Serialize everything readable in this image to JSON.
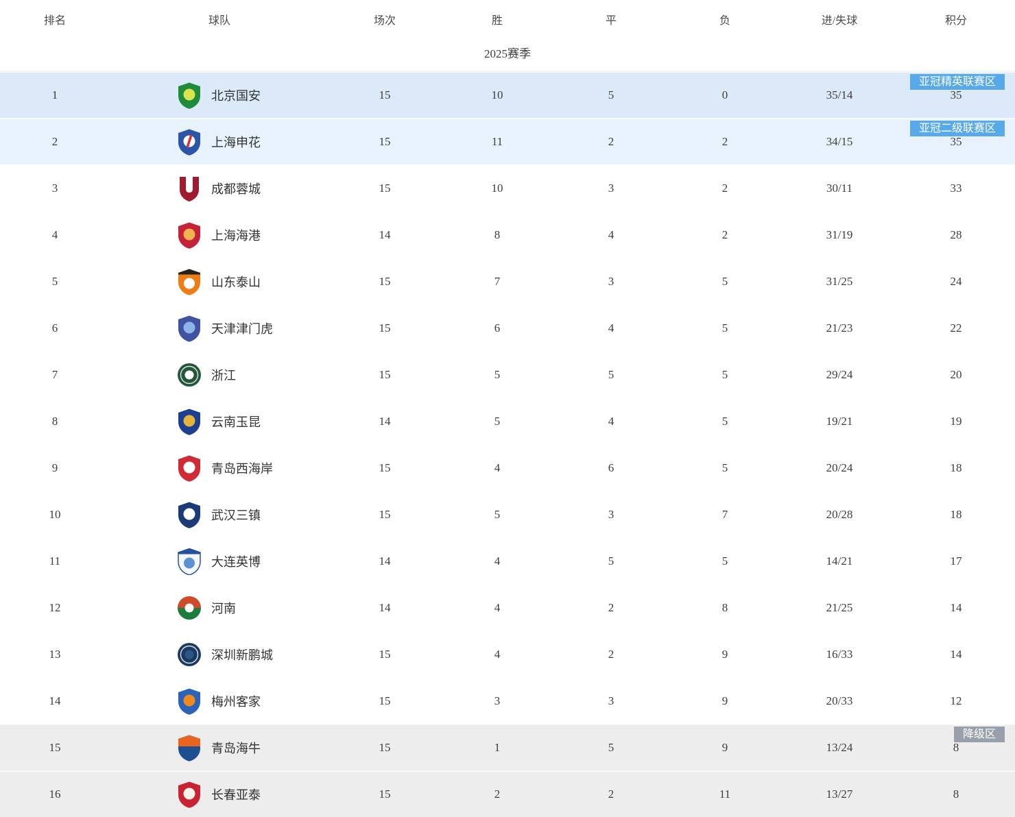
{
  "table": {
    "season_label": "2025赛季",
    "columns": [
      "排名",
      "球队",
      "场次",
      "胜",
      "平",
      "负",
      "进/失球",
      "积分"
    ],
    "zone_colors": {
      "afc_elite_row": "#dbe9f8",
      "afc_two_row": "#e8f2fc",
      "relegation_row": "#ededed"
    },
    "badge_colors": {
      "blue": "#58a9e9",
      "gray": "#9aa0ab"
    },
    "rows": [
      {
        "rank": "1",
        "team": "北京国安",
        "matches": "15",
        "wins": "10",
        "draws": "5",
        "losses": "0",
        "goals": "35/14",
        "points": "35",
        "zone": "afc-elite",
        "badge": {
          "label": "亚冠精英联赛区",
          "color": "blue"
        },
        "logo": {
          "icon": "team-crest-beijing-guoan",
          "style": "shield",
          "c1": "#1f8c3c",
          "c2": "#d9e54e"
        }
      },
      {
        "rank": "2",
        "team": "上海申花",
        "matches": "15",
        "wins": "11",
        "draws": "2",
        "losses": "2",
        "goals": "34/15",
        "points": "35",
        "zone": "afc-two",
        "badge": {
          "label": "亚冠二级联赛区",
          "color": "blue"
        },
        "logo": {
          "icon": "team-crest-shanghai-shenhua",
          "style": "shield",
          "c1": "#2a55a8",
          "c2": "#ffffff",
          "stripe": "#d03445"
        }
      },
      {
        "rank": "3",
        "team": "成都蓉城",
        "matches": "15",
        "wins": "10",
        "draws": "3",
        "losses": "2",
        "goals": "30/11",
        "points": "33",
        "zone": "none",
        "logo": {
          "icon": "team-crest-chengdu-rongcheng",
          "style": "u-shield",
          "c1": "#9e1c2e"
        }
      },
      {
        "rank": "4",
        "team": "上海海港",
        "matches": "14",
        "wins": "8",
        "draws": "4",
        "losses": "2",
        "goals": "31/19",
        "points": "28",
        "zone": "none",
        "logo": {
          "icon": "team-crest-shanghai-port",
          "style": "shield",
          "c1": "#c52237",
          "c2": "#f2b24f"
        }
      },
      {
        "rank": "5",
        "team": "山东泰山",
        "matches": "15",
        "wins": "7",
        "draws": "3",
        "losses": "5",
        "goals": "31/25",
        "points": "24",
        "zone": "none",
        "logo": {
          "icon": "team-crest-shandong-taishan",
          "style": "shield-band",
          "c1": "#ef7d17",
          "band": "#26221f",
          "c2": "#ffffff"
        }
      },
      {
        "rank": "6",
        "team": "天津津门虎",
        "matches": "15",
        "wins": "6",
        "draws": "4",
        "losses": "5",
        "goals": "21/23",
        "points": "22",
        "zone": "none",
        "logo": {
          "icon": "team-crest-tianjin-jinmen-tiger",
          "style": "shield",
          "c1": "#4053a3",
          "c2": "#8fb3e8"
        }
      },
      {
        "rank": "7",
        "team": "浙江",
        "matches": "15",
        "wins": "5",
        "draws": "5",
        "losses": "5",
        "goals": "29/24",
        "points": "20",
        "zone": "none",
        "logo": {
          "icon": "team-crest-zhejiang",
          "style": "circle",
          "c1": "#24573a",
          "c2": "#ffffff"
        }
      },
      {
        "rank": "8",
        "team": "云南玉昆",
        "matches": "14",
        "wins": "5",
        "draws": "4",
        "losses": "5",
        "goals": "19/21",
        "points": "19",
        "zone": "none",
        "logo": {
          "icon": "team-crest-yunnan-yukun",
          "style": "shield",
          "c1": "#1d3f90",
          "c2": "#e3b33b"
        }
      },
      {
        "rank": "9",
        "team": "青岛西海岸",
        "matches": "15",
        "wins": "4",
        "draws": "6",
        "losses": "5",
        "goals": "20/24",
        "points": "18",
        "zone": "none",
        "logo": {
          "icon": "team-crest-qingdao-west-coast",
          "style": "shield",
          "c1": "#d02a35",
          "c2": "#ffffff"
        }
      },
      {
        "rank": "10",
        "team": "武汉三镇",
        "matches": "15",
        "wins": "5",
        "draws": "3",
        "losses": "7",
        "goals": "20/28",
        "points": "18",
        "zone": "none",
        "logo": {
          "icon": "team-crest-wuhan-three-towns",
          "style": "shield",
          "c1": "#1d3a78",
          "c2": "#ffffff"
        }
      },
      {
        "rank": "11",
        "team": "大连英博",
        "matches": "14",
        "wins": "4",
        "draws": "5",
        "losses": "5",
        "goals": "14/21",
        "points": "17",
        "zone": "none",
        "logo": {
          "icon": "team-crest-dalian-yingbo",
          "style": "shield-band",
          "c1": "#f4f8fc",
          "band": "#27509e",
          "c2": "#5b92d4",
          "stroke": "#27509e"
        }
      },
      {
        "rank": "12",
        "team": "河南",
        "matches": "14",
        "wins": "4",
        "draws": "2",
        "losses": "8",
        "goals": "21/25",
        "points": "14",
        "zone": "none",
        "logo": {
          "icon": "team-crest-henan",
          "style": "circle-split",
          "c1": "#cf4a2a",
          "c2": "#1e7b3e"
        }
      },
      {
        "rank": "13",
        "team": "深圳新鹏城",
        "matches": "15",
        "wins": "4",
        "draws": "2",
        "losses": "9",
        "goals": "16/33",
        "points": "14",
        "zone": "none",
        "logo": {
          "icon": "team-crest-shenzhen-peng-city",
          "style": "circle",
          "c1": "#1b3a61",
          "c2": "#2e5685"
        }
      },
      {
        "rank": "14",
        "team": "梅州客家",
        "matches": "15",
        "wins": "3",
        "draws": "3",
        "losses": "9",
        "goals": "20/33",
        "points": "12",
        "zone": "none",
        "logo": {
          "icon": "team-crest-meizhou-hakka",
          "style": "shield",
          "c1": "#2a63b8",
          "c2": "#ef8a1f"
        }
      },
      {
        "rank": "15",
        "team": "青岛海牛",
        "matches": "15",
        "wins": "1",
        "draws": "5",
        "losses": "9",
        "goals": "13/24",
        "points": "8",
        "zone": "relegation",
        "badge": {
          "label": "降级区",
          "color": "gray"
        },
        "logo": {
          "icon": "team-crest-qingdao-hainiu",
          "style": "shield-split",
          "c1": "#e8641f",
          "c2": "#1d4f91"
        }
      },
      {
        "rank": "16",
        "team": "长春亚泰",
        "matches": "15",
        "wins": "2",
        "draws": "2",
        "losses": "11",
        "goals": "13/27",
        "points": "8",
        "zone": "relegation",
        "logo": {
          "icon": "team-crest-changchun-yatai",
          "style": "shield",
          "c1": "#c92233",
          "c2": "#f7f3e8"
        }
      }
    ]
  }
}
